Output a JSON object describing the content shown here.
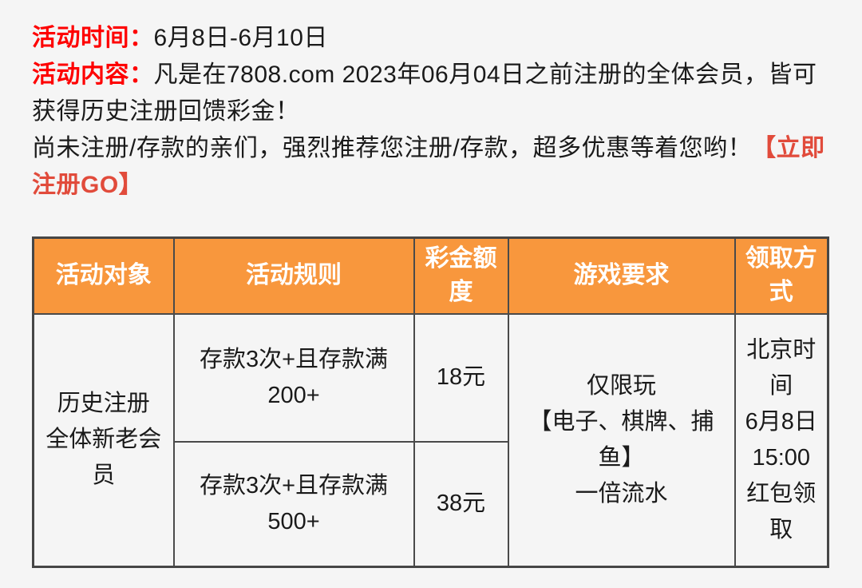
{
  "colors": {
    "page_background": "#f5f5f5",
    "label_red": "#fe0000",
    "cta_red": "#e14b3b",
    "header_orange": "#f8973d",
    "header_text": "#ffffff",
    "table_border": "#4a4a4a",
    "body_text": "#1a1a1a"
  },
  "intro": {
    "time_label": "活动时间：",
    "time_value": "6月8日-6月10日",
    "content_label": "活动内容：",
    "content_text": "凡是在7808.com 2023年06月04日之前注册的全体会员，皆可获得历史注册回馈彩金！",
    "promo_text": "尚未注册/存款的亲们，强烈推荐您注册/存款，超多优惠等着您哟！",
    "cta_text": "【立即注册GO】"
  },
  "table": {
    "headers": [
      "活动对象",
      "活动规则",
      "彩金额度",
      "游戏要求",
      "领取方式"
    ],
    "subject": "历史注册\n全体新老会\n员",
    "rows": [
      {
        "rule": "存款3次+且存款满\n200+",
        "bonus": "18元"
      },
      {
        "rule": "存款3次+且存款满\n500+",
        "bonus": "38元"
      }
    ],
    "game_requirement": "仅限玩\n【电子、棋牌、捕\n鱼】\n一倍流水",
    "claim_method": "北京时\n间\n6月8日\n15:00\n红包领\n取"
  }
}
